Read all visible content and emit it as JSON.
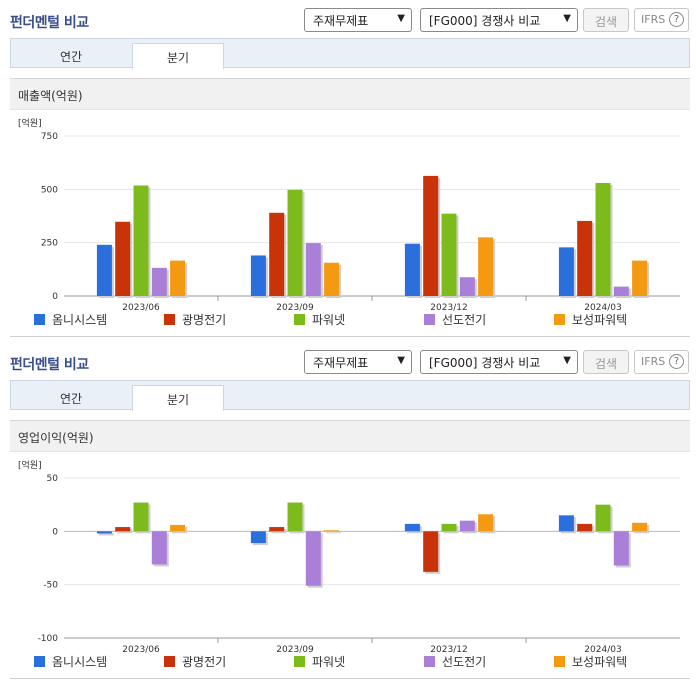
{
  "sections": [
    {
      "header": {
        "title": "펀더멘털 비교",
        "report_select": "주재무제표",
        "compare_select": "[FG000] 경쟁사 비교",
        "search_label": "검색",
        "ifrs_label": "IFRS",
        "help_icon": "?"
      },
      "tabs": [
        {
          "label": "연간"
        },
        {
          "label": "분기"
        }
      ],
      "active_tab": 1,
      "chart_title": "매출액(억원)"
    },
    {
      "header": {
        "title": "펀더멘털 비교",
        "report_select": "주재무제표",
        "compare_select": "[FG000] 경쟁사 비교",
        "search_label": "검색",
        "ifrs_label": "IFRS",
        "help_icon": "?"
      },
      "tabs": [
        {
          "label": "연간"
        },
        {
          "label": "분기"
        }
      ],
      "active_tab": 1,
      "chart_title": "영업이익(억원)"
    }
  ],
  "chart_data": [
    {
      "type": "bar",
      "unit_label": "[억원]",
      "categories": [
        "2023/06",
        "2023/09",
        "2023/12",
        "2024/03"
      ],
      "ylim": [
        0,
        750
      ],
      "yticks": [
        0,
        250,
        500,
        750
      ],
      "legend_position": "bottom",
      "series": [
        {
          "name": "옴니시스템",
          "color": "#2a6fdb",
          "values": [
            240,
            190,
            245,
            228
          ]
        },
        {
          "name": "광명전기",
          "color": "#c9330a",
          "values": [
            348,
            390,
            563,
            352
          ]
        },
        {
          "name": "파워넷",
          "color": "#7dbb1c",
          "values": [
            518,
            498,
            386,
            530
          ]
        },
        {
          "name": "선도전기",
          "color": "#a97fd8",
          "values": [
            132,
            248,
            88,
            44
          ]
        },
        {
          "name": "보성파워텍",
          "color": "#f39a12",
          "values": [
            166,
            156,
            275,
            166
          ]
        }
      ]
    },
    {
      "type": "bar",
      "unit_label": "[억원]",
      "categories": [
        "2023/06",
        "2023/09",
        "2023/12",
        "2024/03"
      ],
      "ylim": [
        -100,
        50
      ],
      "yticks": [
        -100,
        -50,
        0,
        50
      ],
      "legend_position": "bottom",
      "series": [
        {
          "name": "옴니시스템",
          "color": "#2a6fdb",
          "values": [
            -2,
            -11,
            7,
            15
          ]
        },
        {
          "name": "광명전기",
          "color": "#c9330a",
          "values": [
            4,
            4,
            -38,
            7
          ]
        },
        {
          "name": "파워넷",
          "color": "#7dbb1c",
          "values": [
            27,
            27,
            7,
            25
          ]
        },
        {
          "name": "선도전기",
          "color": "#a97fd8",
          "values": [
            -31,
            -51,
            10,
            -32
          ]
        },
        {
          "name": "보성파워텍",
          "color": "#f39a12",
          "values": [
            6,
            1,
            16,
            8
          ]
        }
      ]
    }
  ]
}
